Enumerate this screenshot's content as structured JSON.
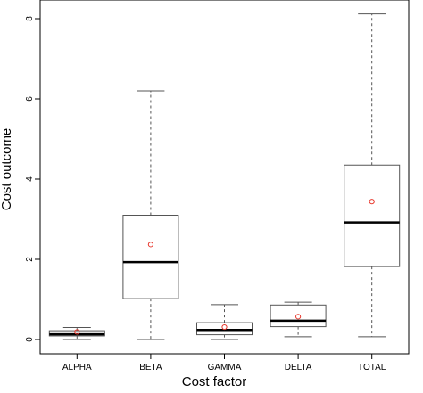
{
  "chart_data": {
    "type": "box",
    "xlabel": "Cost factor",
    "ylabel": "Cost outcome",
    "ylim": [
      -0.2,
      8.2
    ],
    "yticks": [
      0,
      2,
      4,
      6,
      8
    ],
    "categories": [
      "ALPHA",
      "BETA",
      "GAMMA",
      "DELTA",
      "TOTAL"
    ],
    "boxes": [
      {
        "category": "ALPHA",
        "whisker_low": 0.0,
        "q1": 0.09,
        "median": 0.13,
        "q3": 0.22,
        "whisker_high": 0.3,
        "mean": 0.19
      },
      {
        "category": "BETA",
        "whisker_low": 0.0,
        "q1": 1.02,
        "median": 1.93,
        "q3": 3.1,
        "whisker_high": 6.2,
        "mean": 2.37
      },
      {
        "category": "GAMMA",
        "whisker_low": 0.0,
        "q1": 0.12,
        "median": 0.24,
        "q3": 0.42,
        "whisker_high": 0.87,
        "mean": 0.31
      },
      {
        "category": "DELTA",
        "whisker_low": 0.07,
        "q1": 0.32,
        "median": 0.47,
        "q3": 0.86,
        "whisker_high": 0.93,
        "mean": 0.57
      },
      {
        "category": "TOTAL",
        "whisker_low": 0.07,
        "q1": 1.82,
        "median": 2.92,
        "q3": 4.35,
        "whisker_high": 8.12,
        "mean": 3.44
      }
    ],
    "colors": {
      "box": "#555555",
      "median": "#000000",
      "whisker": "#555555",
      "mean": "#e8392e",
      "frame": "#000000"
    },
    "grid": false,
    "legend": "none"
  }
}
